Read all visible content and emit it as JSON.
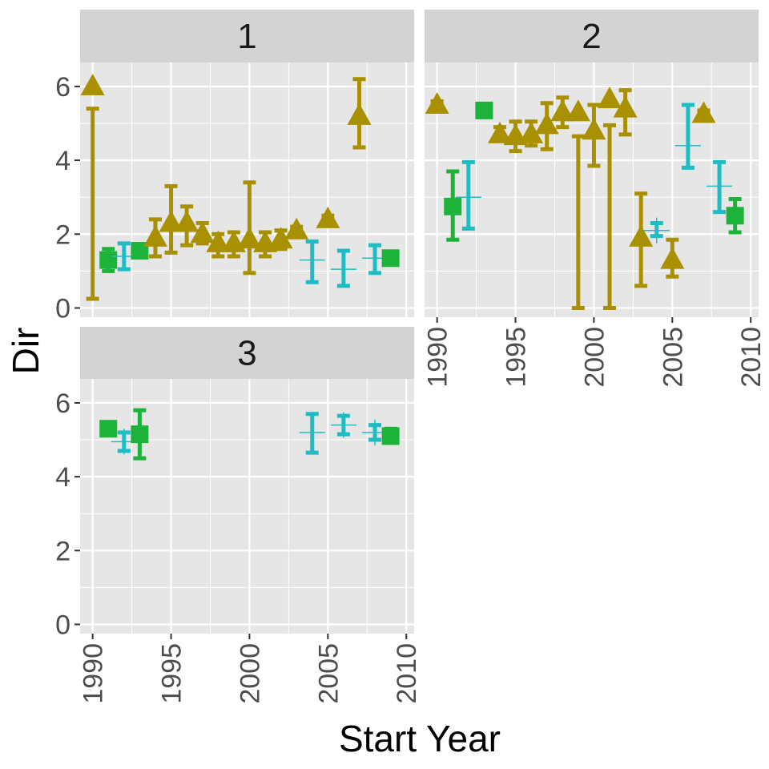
{
  "chart_data": {
    "type": "scatter",
    "layout": "faceted",
    "xlabel": "Start Year",
    "ylabel": "Dir",
    "xlim": [
      1989.2,
      2010.5
    ],
    "ylim": [
      -0.25,
      6.65
    ],
    "x_ticks": [
      1990,
      1995,
      2000,
      2005,
      2010
    ],
    "y_ticks": [
      0,
      2,
      4,
      6
    ],
    "grid": true,
    "legend": "none",
    "colors": {
      "triangle": "#A89000",
      "square": "#1DB33A",
      "plus": "#1FBCC4",
      "panel_bg": "#E6E6E6",
      "strip_bg": "#D3D3D3",
      "grid": "#FFFFFF"
    },
    "panels": [
      {
        "label": "1",
        "points": [
          {
            "x": 1990,
            "y": 6.0,
            "shape": "triangle",
            "lo": 0.25,
            "hi": 5.4
          },
          {
            "x": 1991,
            "y": 1.3,
            "shape": "square",
            "lo": 1.0,
            "hi": 1.6
          },
          {
            "x": 1992,
            "y": 1.4,
            "shape": "plus",
            "lo": 1.05,
            "hi": 1.75
          },
          {
            "x": 1993,
            "y": 1.55,
            "shape": "square",
            "lo": 1.4,
            "hi": 1.7
          },
          {
            "x": 1994,
            "y": 1.9,
            "shape": "triangle",
            "lo": 1.4,
            "hi": 2.4
          },
          {
            "x": 1995,
            "y": 2.3,
            "shape": "triangle",
            "lo": 1.5,
            "hi": 3.3
          },
          {
            "x": 1996,
            "y": 2.3,
            "shape": "triangle",
            "lo": 1.7,
            "hi": 2.75
          },
          {
            "x": 1997,
            "y": 2.0,
            "shape": "triangle",
            "lo": 1.75,
            "hi": 2.3
          },
          {
            "x": 1998,
            "y": 1.75,
            "shape": "triangle",
            "lo": 1.4,
            "hi": 2.0
          },
          {
            "x": 1999,
            "y": 1.75,
            "shape": "triangle",
            "lo": 1.4,
            "hi": 2.05
          },
          {
            "x": 2000,
            "y": 1.85,
            "shape": "triangle",
            "lo": 0.95,
            "hi": 3.4
          },
          {
            "x": 2001,
            "y": 1.75,
            "shape": "triangle",
            "lo": 1.4,
            "hi": 2.05
          },
          {
            "x": 2002,
            "y": 1.85,
            "shape": "triangle",
            "lo": 1.6,
            "hi": 2.1
          },
          {
            "x": 2003,
            "y": 2.1,
            "shape": "triangle",
            "lo": 1.95,
            "hi": 2.2
          },
          {
            "x": 2004,
            "y": 1.3,
            "shape": "plus",
            "lo": 0.7,
            "hi": 1.8
          },
          {
            "x": 2005,
            "y": 2.4,
            "shape": "triangle",
            "lo": 2.3,
            "hi": 2.5
          },
          {
            "x": 2006,
            "y": 1.05,
            "shape": "plus",
            "lo": 0.6,
            "hi": 1.55
          },
          {
            "x": 2007,
            "y": 5.2,
            "shape": "triangle",
            "lo": 4.35,
            "hi": 6.2
          },
          {
            "x": 2008,
            "y": 1.35,
            "shape": "plus",
            "lo": 0.95,
            "hi": 1.7
          },
          {
            "x": 2009,
            "y": 1.35,
            "shape": "square",
            "lo": 1.25,
            "hi": 1.45
          }
        ]
      },
      {
        "label": "2",
        "points": [
          {
            "x": 1990,
            "y": 5.5,
            "shape": "triangle",
            "lo": 5.4,
            "hi": 5.6
          },
          {
            "x": 1991,
            "y": 2.75,
            "shape": "square",
            "lo": 1.85,
            "hi": 3.7
          },
          {
            "x": 1992,
            "y": 3.0,
            "shape": "plus",
            "lo": 2.15,
            "hi": 3.95
          },
          {
            "x": 1993,
            "y": 5.35,
            "shape": "square",
            "lo": 5.2,
            "hi": 5.5
          },
          {
            "x": 1994,
            "y": 4.7,
            "shape": "triangle",
            "lo": 4.55,
            "hi": 4.9
          },
          {
            "x": 1995,
            "y": 4.65,
            "shape": "triangle",
            "lo": 4.25,
            "hi": 5.05
          },
          {
            "x": 1996,
            "y": 4.7,
            "shape": "triangle",
            "lo": 4.4,
            "hi": 5.05
          },
          {
            "x": 1997,
            "y": 4.95,
            "shape": "triangle",
            "lo": 4.3,
            "hi": 5.55
          },
          {
            "x": 1998,
            "y": 5.3,
            "shape": "triangle",
            "lo": 4.9,
            "hi": 5.7
          },
          {
            "x": 1999,
            "y": 5.3,
            "shape": "triangle",
            "lo": 0.0,
            "hi": 4.65
          },
          {
            "x": 2000,
            "y": 4.8,
            "shape": "triangle",
            "lo": 3.85,
            "hi": 5.5
          },
          {
            "x": 2001,
            "y": 5.65,
            "shape": "triangle",
            "lo": 0.0,
            "hi": 4.95
          },
          {
            "x": 2002,
            "y": 5.4,
            "shape": "triangle",
            "lo": 4.7,
            "hi": 5.9
          },
          {
            "x": 2003,
            "y": 1.9,
            "shape": "triangle",
            "lo": 0.6,
            "hi": 3.1
          },
          {
            "x": 2004,
            "y": 2.1,
            "shape": "plus",
            "lo": 1.95,
            "hi": 2.3
          },
          {
            "x": 2005,
            "y": 1.3,
            "shape": "triangle",
            "lo": 0.85,
            "hi": 1.85
          },
          {
            "x": 2006,
            "y": 4.4,
            "shape": "plus",
            "lo": 3.8,
            "hi": 5.5
          },
          {
            "x": 2007,
            "y": 5.25,
            "shape": "triangle",
            "lo": 5.15,
            "hi": 5.35
          },
          {
            "x": 2008,
            "y": 3.3,
            "shape": "plus",
            "lo": 2.6,
            "hi": 3.95
          },
          {
            "x": 2009,
            "y": 2.5,
            "shape": "square",
            "lo": 2.05,
            "hi": 2.95
          }
        ]
      },
      {
        "label": "3",
        "points": [
          {
            "x": 1991,
            "y": 5.3,
            "shape": "square",
            "lo": 5.2,
            "hi": 5.4
          },
          {
            "x": 1992,
            "y": 4.95,
            "shape": "plus",
            "lo": 4.7,
            "hi": 5.2
          },
          {
            "x": 1993,
            "y": 5.15,
            "shape": "square",
            "lo": 4.5,
            "hi": 5.8
          },
          {
            "x": 2004,
            "y": 5.2,
            "shape": "plus",
            "lo": 4.65,
            "hi": 5.7
          },
          {
            "x": 2006,
            "y": 5.4,
            "shape": "plus",
            "lo": 5.15,
            "hi": 5.65
          },
          {
            "x": 2008,
            "y": 5.2,
            "shape": "plus",
            "lo": 5.0,
            "hi": 5.4
          },
          {
            "x": 2009,
            "y": 5.1,
            "shape": "square",
            "lo": 4.95,
            "hi": 5.3
          }
        ]
      }
    ]
  }
}
